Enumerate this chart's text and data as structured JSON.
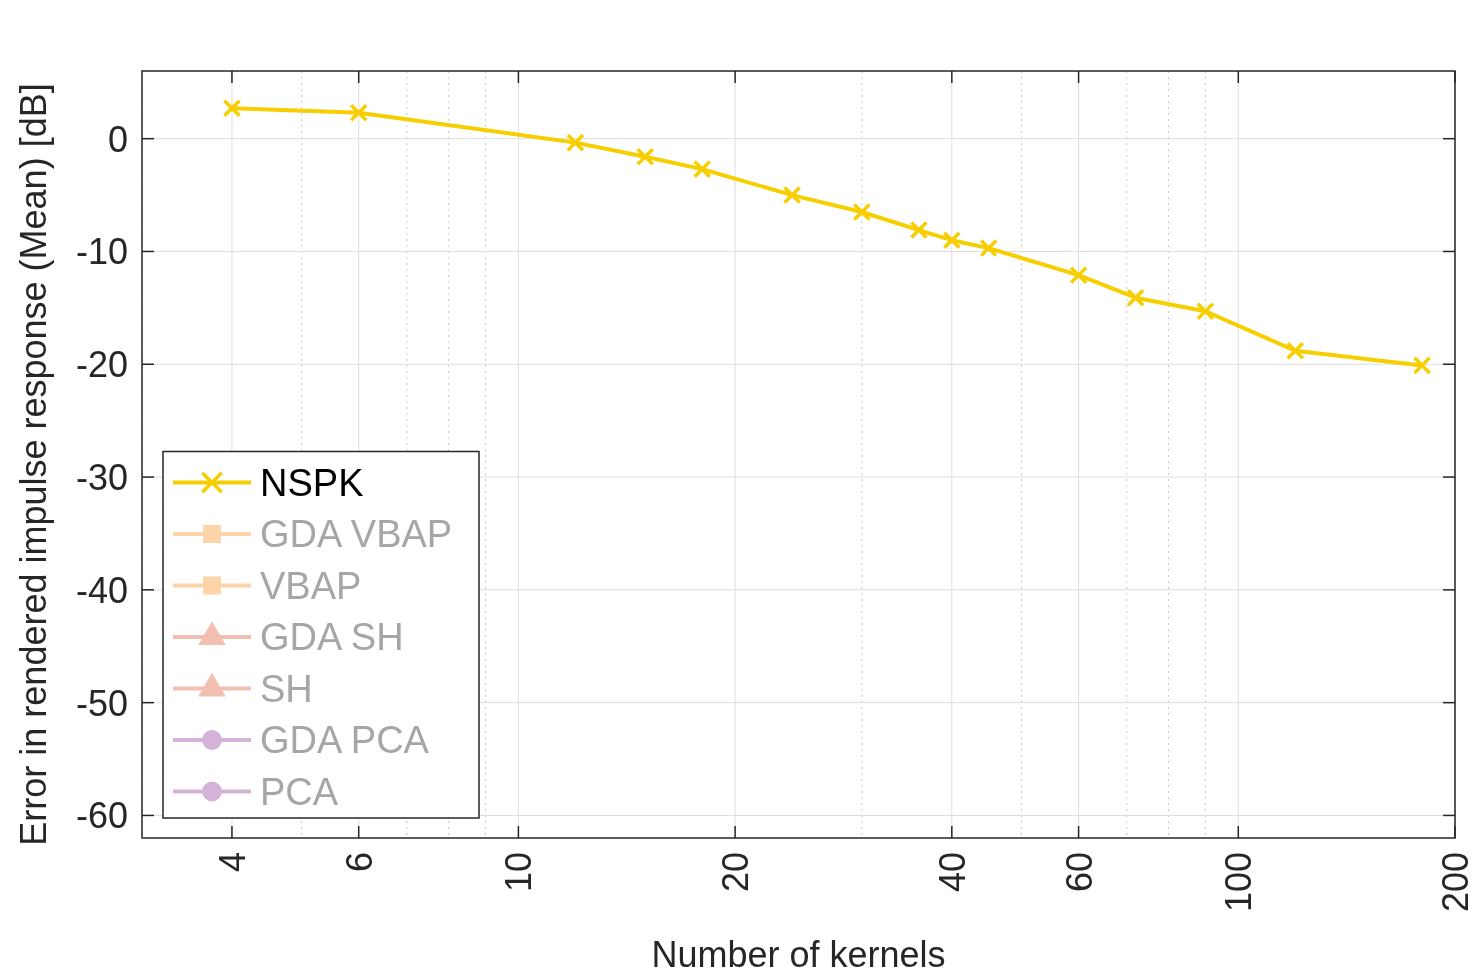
{
  "chart_data": {
    "type": "line",
    "xlabel": "Number of kernels",
    "ylabel": "Error in rendered impulse response (Mean) [dB]",
    "x": [
      4,
      6,
      12,
      15,
      18,
      24,
      30,
      36,
      40,
      45,
      60,
      72,
      90,
      120,
      180
    ],
    "series": [
      {
        "name": "NSPK",
        "color": "#f7ce00",
        "marker": "cross",
        "values": [
          2.7,
          2.3,
          -0.35,
          -1.6,
          -2.7,
          -5.0,
          -6.5,
          -8.1,
          -9.0,
          -9.7,
          -12.1,
          -14.1,
          -15.3,
          -18.8,
          -20.1
        ]
      },
      {
        "name": "GDA VBAP",
        "color": "#fdd3a8",
        "marker": "square",
        "values": [
          null,
          null,
          null,
          null,
          null,
          null,
          null,
          null,
          null,
          null,
          null,
          null,
          null,
          null,
          null
        ]
      },
      {
        "name": "VBAP",
        "color": "#fdd3a8",
        "marker": "square",
        "values": [
          null,
          null,
          null,
          null,
          null,
          null,
          null,
          null,
          null,
          null,
          null,
          null,
          null,
          null,
          null
        ]
      },
      {
        "name": "GDA SH",
        "color": "#f2bfb0",
        "marker": "triangle",
        "values": [
          null,
          null,
          null,
          null,
          null,
          null,
          null,
          null,
          null,
          null,
          null,
          null,
          null,
          null,
          null
        ]
      },
      {
        "name": "SH",
        "color": "#f2bfb0",
        "marker": "triangle",
        "values": [
          null,
          null,
          null,
          null,
          null,
          null,
          null,
          null,
          null,
          null,
          null,
          null,
          null,
          null,
          null
        ]
      },
      {
        "name": "GDA PCA",
        "color": "#d5b2d8",
        "marker": "circle",
        "values": [
          null,
          null,
          null,
          null,
          null,
          null,
          null,
          null,
          null,
          null,
          null,
          null,
          null,
          null,
          null
        ]
      },
      {
        "name": "PCA",
        "color": "#d5b2d8",
        "marker": "circle",
        "values": [
          null,
          null,
          null,
          null,
          null,
          null,
          null,
          null,
          null,
          null,
          null,
          null,
          null,
          null,
          null
        ]
      }
    ],
    "log": "x",
    "xlim": [
      3,
      200
    ],
    "xticks": [
      4,
      6,
      10,
      20,
      40,
      60,
      100,
      200
    ],
    "ylim": [
      -62,
      6
    ],
    "yticks": [
      -60,
      -50,
      -40,
      -30,
      -20,
      -10,
      0
    ],
    "grid": true,
    "legend": "bottom left",
    "line_style": "solid"
  }
}
